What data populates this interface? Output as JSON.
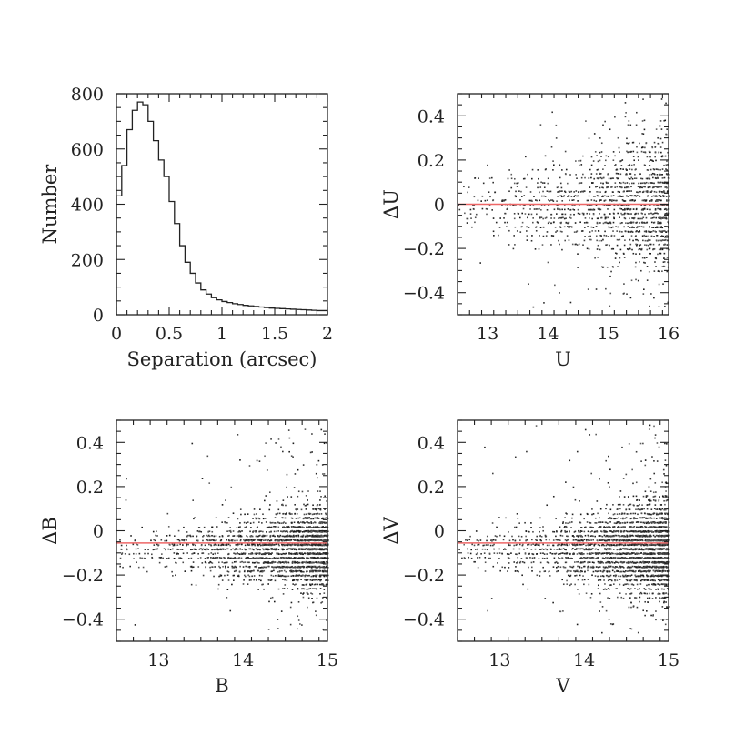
{
  "chart_data": [
    {
      "id": "hist",
      "type": "bar",
      "xlabel": "Separation (arcsec)",
      "ylabel": "Number",
      "xlim": [
        0,
        2
      ],
      "ylim": [
        0,
        800
      ],
      "xticks": [
        0,
        0.5,
        1,
        1.5,
        2
      ],
      "xtick_labels": [
        "0",
        "0.5",
        "1",
        "1.5",
        "2"
      ],
      "yticks": [
        0,
        200,
        400,
        600,
        800
      ],
      "ytick_labels": [
        "0",
        "200",
        "400",
        "600",
        "800"
      ],
      "bin_width": 0.05,
      "values": [
        430,
        540,
        670,
        740,
        770,
        760,
        700,
        630,
        560,
        500,
        410,
        330,
        250,
        190,
        150,
        115,
        90,
        75,
        62,
        54,
        48,
        44,
        40,
        37,
        34,
        32,
        30,
        28,
        26,
        24,
        23,
        22,
        21,
        20,
        19,
        18,
        17,
        16,
        15,
        15
      ]
    },
    {
      "id": "du",
      "type": "scatter",
      "xlabel": "U",
      "ylabel": "ΔU",
      "xlim": [
        12.5,
        16
      ],
      "ylim": [
        -0.5,
        0.5
      ],
      "xticks": [
        13,
        14,
        15,
        16
      ],
      "xtick_labels": [
        "13",
        "14",
        "15",
        "16"
      ],
      "yticks": [
        -0.4,
        -0.2,
        0,
        0.2,
        0.4
      ],
      "ytick_labels": [
        "−0.4",
        "−0.2",
        "0",
        "0.2",
        "0.4"
      ],
      "reference_line": 0,
      "reference_color": "#ee6666",
      "density": {
        "mag_min": 12.5,
        "mag_max": 16,
        "growth": 3.0,
        "mean": 0.0,
        "spread": 0.16,
        "count": 1500
      }
    },
    {
      "id": "db",
      "type": "scatter",
      "xlabel": "B",
      "ylabel": "ΔB",
      "xlim": [
        12.5,
        15
      ],
      "ylim": [
        -0.5,
        0.5
      ],
      "xticks": [
        13,
        14,
        15
      ],
      "xtick_labels": [
        "13",
        "14",
        "15"
      ],
      "yticks": [
        -0.4,
        -0.2,
        0,
        0.2,
        0.4
      ],
      "ytick_labels": [
        "−0.4",
        "−0.2",
        "0",
        "0.2",
        "0.4"
      ],
      "reference_line": -0.055,
      "reference_color": "#ee6666",
      "density": {
        "mag_min": 12.5,
        "mag_max": 15,
        "growth": 4.0,
        "mean": -0.08,
        "spread": 0.1,
        "count": 2500
      }
    },
    {
      "id": "dv",
      "type": "scatter",
      "xlabel": "V",
      "ylabel": "ΔV",
      "xlim": [
        12.5,
        15
      ],
      "ylim": [
        -0.5,
        0.5
      ],
      "xticks": [
        13,
        14,
        15
      ],
      "xtick_labels": [
        "13",
        "14",
        "15"
      ],
      "yticks": [
        -0.4,
        -0.2,
        0,
        0.2,
        0.4
      ],
      "ytick_labels": [
        "−0.4",
        "−0.2",
        "0",
        "0.2",
        "0.4"
      ],
      "reference_line": -0.055,
      "reference_color": "#ee6666",
      "density": {
        "mag_min": 12.5,
        "mag_max": 15,
        "growth": 4.0,
        "mean": -0.08,
        "spread": 0.11,
        "count": 2800
      }
    }
  ]
}
